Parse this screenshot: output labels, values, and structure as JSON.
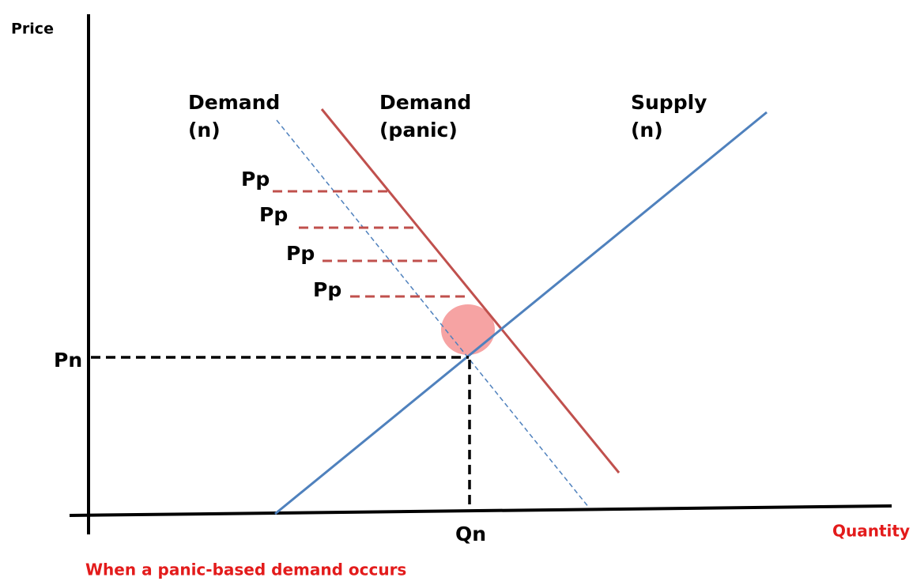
{
  "axes": {
    "y_label": "Price",
    "x_label": "Quantity"
  },
  "curves": [
    {
      "label_lines": [
        "Demand",
        "(n)"
      ]
    },
    {
      "label_lines": [
        "Demand",
        "(panic)"
      ]
    },
    {
      "label_lines": [
        "Supply",
        "(n)"
      ]
    }
  ],
  "price_levels": [
    "Pp",
    "Pp",
    "Pp",
    "Pp"
  ],
  "equilibrium": {
    "price_label": "Pn",
    "quantity_label": "Qn"
  },
  "caption": "When a panic-based demand occurs"
}
